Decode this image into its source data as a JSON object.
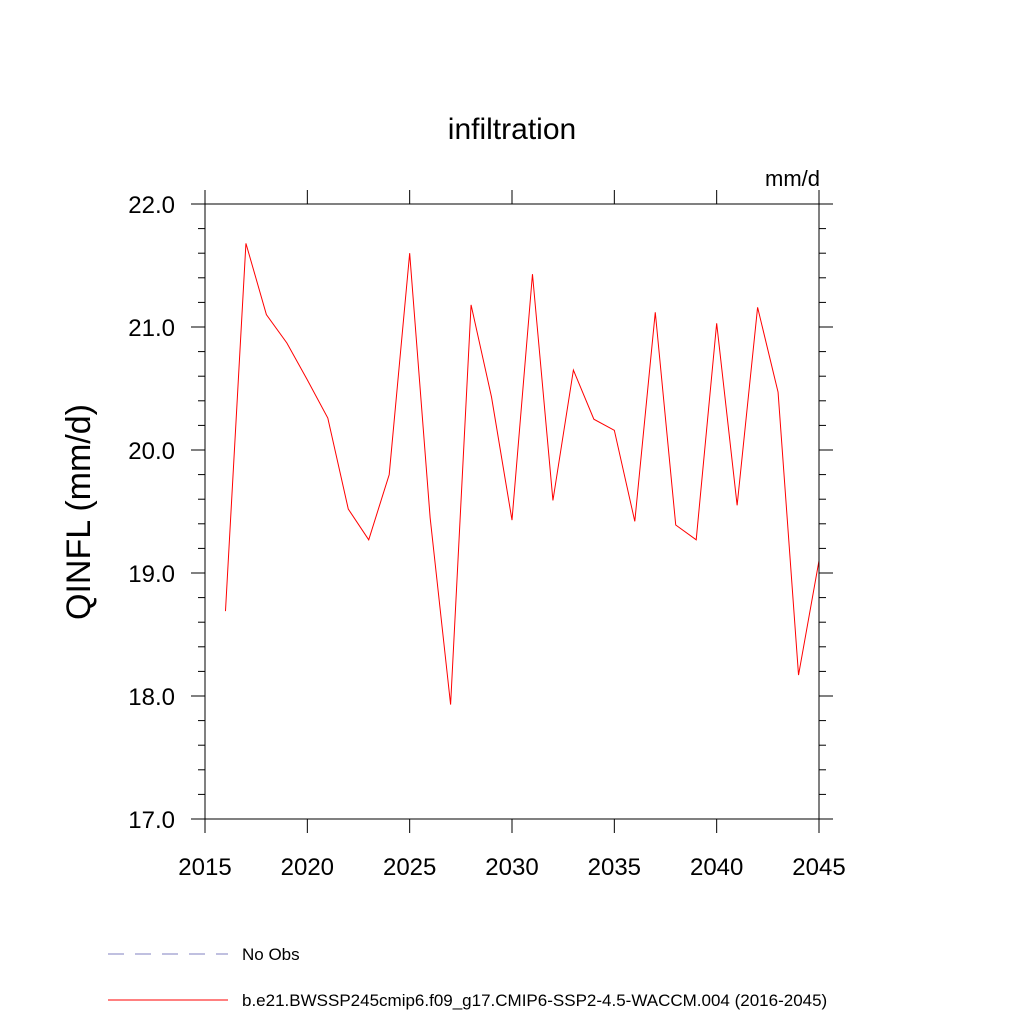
{
  "chart_data": {
    "type": "line",
    "title": "infiltration",
    "units": "mm/d",
    "xlabel": "",
    "ylabel": "QINFL  (mm/d)",
    "xlim": [
      2015,
      2045
    ],
    "ylim": [
      17.0,
      22.0
    ],
    "x_ticks": [
      2015,
      2020,
      2025,
      2030,
      2035,
      2040,
      2045
    ],
    "x_tick_labels": [
      "2015",
      "2020",
      "2025",
      "2030",
      "2035",
      "2040",
      "2045"
    ],
    "y_ticks": [
      17.0,
      18.0,
      19.0,
      20.0,
      21.0,
      22.0
    ],
    "y_tick_labels": [
      "17.0",
      "18.0",
      "19.0",
      "20.0",
      "21.0",
      "22.0"
    ],
    "series": [
      {
        "name": "b.e21.BWSSP245cmip6.f09_g17.CMIP6-SSP2-4.5-WACCM.004 (2016-2045)",
        "color": "#ff0000",
        "style": "solid",
        "x": [
          2016,
          2017,
          2018,
          2019,
          2020,
          2021,
          2022,
          2023,
          2024,
          2025,
          2026,
          2027,
          2028,
          2029,
          2030,
          2031,
          2032,
          2033,
          2034,
          2035,
          2036,
          2037,
          2038,
          2039,
          2040,
          2041,
          2042,
          2043,
          2044,
          2045
        ],
        "values": [
          18.69,
          21.68,
          21.1,
          20.87,
          20.57,
          20.26,
          19.52,
          19.27,
          19.8,
          21.6,
          19.45,
          17.93,
          21.18,
          20.43,
          19.43,
          21.43,
          19.59,
          20.65,
          20.25,
          20.16,
          19.42,
          21.12,
          19.39,
          19.27,
          21.03,
          19.55,
          21.16,
          20.47,
          18.17,
          19.1
        ]
      }
    ],
    "legend": [
      {
        "label": "No Obs",
        "color": "#8080c0",
        "style": "dashed"
      },
      {
        "label": "b.e21.BWSSP245cmip6.f09_g17.CMIP6-SSP2-4.5-WACCM.004 (2016-2045)",
        "color": "#ff0000",
        "style": "solid"
      }
    ],
    "legend_position": "bottom-left",
    "grid": false
  }
}
